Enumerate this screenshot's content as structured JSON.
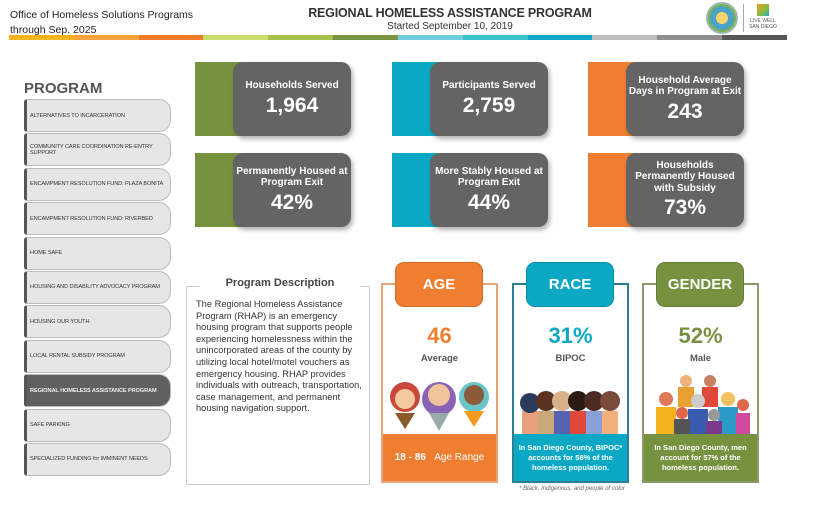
{
  "header": {
    "org_line1": "Office of Homeless Solutions Programs",
    "org_line2": "through Sep. 2025",
    "title": "REGIONAL HOMELESS ASSISTANCE PROGRAM",
    "subtitle": "Started September 10, 2019",
    "logo2_text": "LIVE WELL SAN DIEGO"
  },
  "colors": {
    "bar": [
      "#f9b51f",
      "#f9a13a",
      "#ef7c2a",
      "#c9dd6f",
      "#a9c04b",
      "#7a9444",
      "#6fcfe0",
      "#38bfc9",
      "#0fa9c6",
      "#bdbdbd",
      "#8e8e8e",
      "#575757"
    ],
    "green": "#76923f",
    "teal": "#0ba8c6",
    "orange": "#ef7e30"
  },
  "sidebar": {
    "title": "PROGRAM",
    "items": [
      {
        "label": "ALTERNATIVES TO INCARCERATION"
      },
      {
        "label": "COMMUNITY CARE COORDINATION RE-ENTRY SUPPORT"
      },
      {
        "label": "ENCAMPMENT RESOLUTION FUND: PLAZA BONITA"
      },
      {
        "label": "ENCAMPMENT RESOLUTION FUND: RIVERBED"
      },
      {
        "label": "HOME SAFE"
      },
      {
        "label": "HOUSING AND DISABILITY ADVOCACY PROGRAM"
      },
      {
        "label": "HOUSING OUR YOUTH"
      },
      {
        "label": "LOCAL RENTAL SUBSIDY PROGRAM"
      },
      {
        "label": "REGIONAL HOMELESS ASSISTANCE PROGRAM",
        "selected": true
      },
      {
        "label": "SAFE PARKING"
      },
      {
        "label": "SPECIALIZED FUNDING for IMMINENT NEEDS"
      }
    ]
  },
  "kpis": [
    {
      "label": "Households Served",
      "value": "1,964"
    },
    {
      "label": "Participants Served",
      "value": "2,759"
    },
    {
      "label": "Household Average Days in Program at Exit",
      "value": "243"
    },
    {
      "label": "Permanently Housed at Program Exit",
      "value": "42%"
    },
    {
      "label": "More Stably Housed at Program Exit",
      "value": "44%"
    },
    {
      "label": "Households Permanently Housed with Subsidy",
      "value": "73%"
    }
  ],
  "description": {
    "title": "Program Description",
    "text": "The Regional Homeless Assistance Program (RHAP) is an emergency housing program that supports people experiencing homelessness within the unincorporated areas of the county by utilizing local hotel/motel vouchers as emergency housing. RHAP provides individuals with outreach, transportation, case management, and permanent housing navigation support."
  },
  "age": {
    "title": "AGE",
    "value": "46",
    "label": "Average",
    "range": "18 - 86",
    "range_label": "Age Range"
  },
  "race": {
    "title": "RACE",
    "value": "31%",
    "label": "BIPOC",
    "note": "In San Diego County, BIPOC* accounts for 58% of the homeless population.",
    "footnote": "* Black, Indigenous, and people of color"
  },
  "gender": {
    "title": "GENDER",
    "value": "52%",
    "label": "Male",
    "note": "In San Diego County, men account for 57% of the homeless population."
  }
}
